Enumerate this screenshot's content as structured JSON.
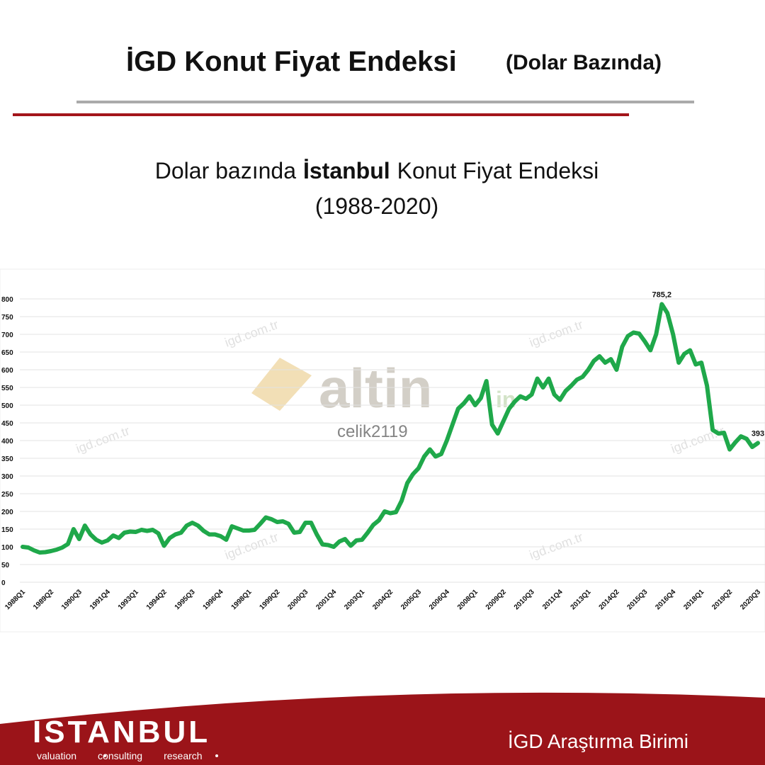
{
  "header": {
    "title": "İGD Konut Fiyat Endeksi",
    "title_note": "(Dolar Bazında)"
  },
  "chart_data": {
    "type": "line",
    "title": [
      "Dolar bazında",
      "İstanbul",
      "Konut Fiyat Endeksi"
    ],
    "subtitle": "(1988-2020)",
    "categories": [
      "1988Q1",
      null,
      null,
      null,
      null,
      "1989Q2",
      null,
      null,
      null,
      null,
      "1990Q3",
      null,
      null,
      null,
      null,
      "1991Q4",
      null,
      null,
      null,
      null,
      "1993Q1",
      null,
      null,
      null,
      null,
      "1994Q2",
      null,
      null,
      null,
      null,
      "1995Q3",
      null,
      null,
      null,
      null,
      "1996Q4",
      null,
      null,
      null,
      null,
      "1998Q1",
      null,
      null,
      null,
      null,
      "1999Q2",
      null,
      null,
      null,
      null,
      "2000Q3",
      null,
      null,
      null,
      null,
      "2001Q4",
      null,
      null,
      null,
      null,
      "2003Q1",
      null,
      null,
      null,
      null,
      "2004Q2",
      null,
      null,
      null,
      null,
      "2005Q3",
      null,
      null,
      null,
      null,
      "2006Q4",
      null,
      null,
      null,
      null,
      "2008Q1",
      null,
      null,
      null,
      null,
      "2009Q2",
      null,
      null,
      null,
      null,
      "2010Q3",
      null,
      null,
      null,
      null,
      "2011Q4",
      null,
      null,
      null,
      null,
      "2013Q1",
      null,
      null,
      null,
      null,
      "2014Q2",
      null,
      null,
      null,
      null,
      "2015Q3",
      null,
      null,
      null,
      null,
      "2016Q4",
      null,
      null,
      null,
      null,
      "2018Q1",
      null,
      null,
      null,
      null,
      "2019Q2",
      null,
      null,
      null,
      null,
      "2020Q3"
    ],
    "values": [
      100,
      98,
      90,
      84,
      85,
      88,
      92,
      98,
      108,
      150,
      122,
      160,
      135,
      120,
      112,
      118,
      132,
      125,
      140,
      143,
      142,
      148,
      145,
      148,
      138,
      103,
      125,
      135,
      140,
      160,
      168,
      160,
      145,
      135,
      135,
      130,
      120,
      158,
      152,
      146,
      146,
      148,
      165,
      183,
      178,
      170,
      172,
      165,
      140,
      142,
      168,
      168,
      135,
      107,
      105,
      100,
      115,
      122,
      103,
      118,
      120,
      140,
      162,
      175,
      200,
      195,
      198,
      230,
      280,
      305,
      322,
      355,
      375,
      355,
      362,
      400,
      445,
      490,
      505,
      525,
      500,
      520,
      568,
      445,
      420,
      455,
      490,
      510,
      525,
      518,
      530,
      575,
      550,
      575,
      530,
      515,
      540,
      555,
      572,
      580,
      600,
      625,
      638,
      620,
      630,
      600,
      665,
      695,
      705,
      702,
      680,
      655,
      700,
      785.2,
      760,
      700,
      620,
      645,
      655,
      615,
      620,
      555,
      430,
      420,
      422,
      375,
      395,
      412,
      405,
      382,
      393
    ],
    "value_labels": [
      null,
      null,
      null,
      null,
      null,
      null,
      null,
      null,
      null,
      null,
      null,
      null,
      null,
      null,
      null,
      null,
      null,
      null,
      null,
      null,
      null,
      null,
      null,
      null,
      null,
      null,
      null,
      null,
      null,
      null,
      null,
      null,
      null,
      null,
      null,
      null,
      null,
      null,
      null,
      null,
      null,
      null,
      null,
      null,
      null,
      null,
      null,
      null,
      null,
      null,
      null,
      null,
      null,
      null,
      null,
      null,
      null,
      null,
      null,
      null,
      null,
      null,
      null,
      null,
      null,
      null,
      null,
      null,
      null,
      null,
      null,
      null,
      null,
      null,
      null,
      null,
      null,
      null,
      null,
      null,
      null,
      null,
      null,
      null,
      null,
      null,
      null,
      null,
      null,
      null,
      null,
      null,
      null,
      null,
      null,
      null,
      null,
      null,
      null,
      null,
      null,
      null,
      null,
      null,
      null,
      null,
      null,
      null,
      null,
      null,
      null,
      null,
      null,
      "785,2",
      null,
      null,
      null,
      null,
      null,
      null,
      null,
      null,
      null,
      null,
      null,
      null,
      null,
      null,
      null,
      null,
      "393"
    ],
    "color": "#1fa84a",
    "ylim": [
      0,
      800
    ],
    "yticks": [
      0,
      50,
      100,
      150,
      200,
      250,
      300,
      350,
      400,
      450,
      500,
      550,
      600,
      650,
      700,
      750,
      800
    ],
    "grid": true
  },
  "watermarks": {
    "brand": "altin",
    "brand_suffix": "in",
    "user": "celik2119",
    "site": "igd.com.tr"
  },
  "footer": {
    "logo": "İSTANBUL",
    "tagline": [
      "valuation",
      "consulting",
      "research"
    ],
    "unit": "İGD Araştırma Birimi"
  }
}
